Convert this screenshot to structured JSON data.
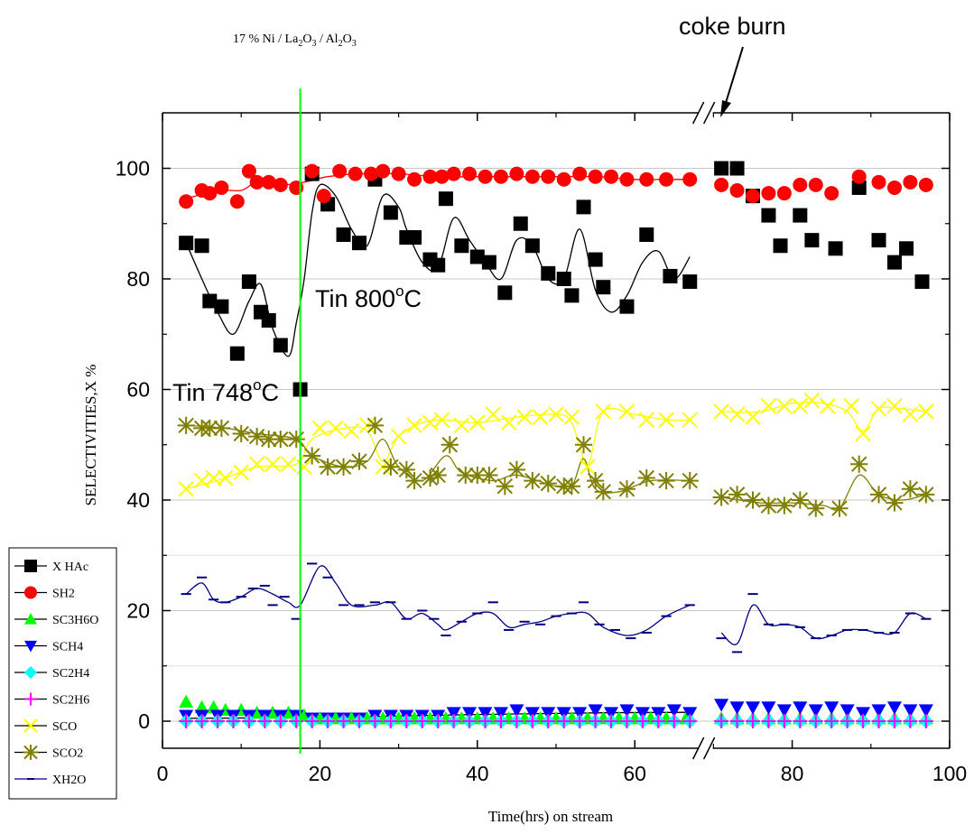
{
  "chart_data": {
    "type": "scatter",
    "xlabel": "Time(hrs) on stream",
    "ylabel": "SELECTIVITIES,X %",
    "xlim": [
      0,
      100
    ],
    "ylim": [
      -5,
      110
    ],
    "x_ticks": [
      "0",
      "20",
      "40",
      "60",
      "80",
      "100"
    ],
    "y_ticks": [
      "0",
      "20",
      "40",
      "60",
      "80",
      "100"
    ],
    "grid": true,
    "legend_position": "bottom-left",
    "axis_break_x": 69,
    "annotations": {
      "catalyst_prefix": "17 % Ni / La",
      "catalyst_sub1": "2",
      "catalyst_mid1": "O",
      "catalyst_sub2": "3",
      "catalyst_mid2": " / Al",
      "catalyst_sub3": "2",
      "catalyst_mid3": "O",
      "catalyst_sub4": "3",
      "coke_burn": "coke burn",
      "tin800_prefix": "Tin 800",
      "tin800_sup": "o",
      "tin800_suffix": "C",
      "tin748_prefix": "Tin 748",
      "tin748_sup": "o",
      "tin748_suffix": "C",
      "vline_x": 17.5
    },
    "series": [
      {
        "name": "X HAc",
        "marker": "square",
        "color": "#000000",
        "x": [
          3,
          5,
          6,
          7.5,
          9.5,
          11,
          12.5,
          13.5,
          15,
          17.5,
          19,
          21,
          23,
          25,
          27,
          29,
          31,
          32,
          34,
          35,
          36,
          38,
          40,
          41.5,
          43.5,
          45.5,
          47,
          49,
          51,
          52,
          53.5,
          55,
          56,
          59,
          61.5,
          64.5,
          67,
          71,
          73,
          75,
          77,
          78.5,
          81,
          82.5,
          85.5,
          88.5,
          91,
          93,
          94.5,
          96.5
        ],
        "y": [
          86.5,
          86,
          76,
          75,
          66.5,
          79.5,
          74,
          72.5,
          68,
          60,
          99,
          93.5,
          88,
          86.5,
          98,
          92,
          87.5,
          87.5,
          83.5,
          82.5,
          94.5,
          86,
          84,
          83,
          77.5,
          90,
          86,
          81,
          80,
          77,
          93,
          83.5,
          78.5,
          75,
          88,
          80.5,
          79.5,
          100,
          100,
          95,
          91.5,
          86,
          91.5,
          87,
          85.5,
          96.5,
          87,
          83,
          85.5,
          79.5
        ],
        "fit_x": [
          3,
          5,
          7,
          9,
          11,
          12.5,
          14,
          16,
          17,
          18,
          19,
          20,
          22,
          24,
          26,
          28,
          30,
          31,
          33,
          35,
          37,
          39,
          41,
          43,
          45,
          47,
          49,
          51,
          53,
          55,
          57,
          59,
          61,
          63,
          65,
          67
        ],
        "fit_y": [
          86.5,
          80,
          74,
          70,
          76,
          79,
          71,
          66,
          72,
          80,
          92,
          97,
          95,
          89,
          86,
          95,
          93,
          89,
          83,
          82,
          91,
          87,
          83,
          80,
          87,
          86,
          80,
          80,
          89,
          78,
          74,
          77,
          83,
          85,
          80,
          84
        ]
      },
      {
        "name": "SH2",
        "marker": "circle",
        "color": "#ff0000",
        "x": [
          3,
          5,
          6,
          7.5,
          9.5,
          11,
          12,
          13.5,
          15,
          17,
          19,
          20.5,
          22.5,
          24.5,
          26.5,
          28,
          30,
          32,
          34,
          35.5,
          37,
          39,
          41,
          43,
          45,
          47,
          49,
          51,
          53,
          55,
          57,
          59,
          61.5,
          64,
          67,
          71,
          73,
          75,
          77,
          79,
          81,
          83,
          85,
          88.5,
          91,
          93,
          95,
          97
        ],
        "y": [
          94,
          96,
          95.5,
          96.5,
          94,
          99.5,
          97.5,
          97.5,
          97,
          96.5,
          99.5,
          95,
          99.5,
          99,
          99,
          99.5,
          99,
          98,
          98.5,
          98.5,
          99,
          99,
          98.5,
          98.5,
          99,
          98.5,
          98.5,
          98,
          99,
          98.5,
          98.5,
          98,
          98,
          98,
          98,
          97,
          96,
          95,
          95.5,
          95.5,
          97,
          97,
          95.5,
          98.5,
          97.5,
          96.5,
          97.5,
          97
        ],
        "fit_x": [
          3,
          7,
          10,
          12,
          15,
          18,
          21,
          25,
          30,
          35,
          40,
          45,
          50,
          55,
          60,
          64,
          67
        ],
        "fit_y": [
          94.5,
          96,
          96,
          97.5,
          97,
          97.5,
          98.5,
          99,
          99,
          98.5,
          98.5,
          98.5,
          98.5,
          98.5,
          98,
          98,
          98
        ]
      },
      {
        "name": "SC3H6O",
        "marker": "triangle-up",
        "color": "#00ff00",
        "x": [
          3,
          5,
          6.5,
          8,
          10,
          12,
          14,
          16,
          18,
          20,
          22,
          24,
          26,
          28,
          30,
          32,
          34,
          36,
          38,
          40,
          42,
          44,
          46,
          48,
          50,
          52,
          54,
          56,
          58,
          60,
          62,
          64,
          66.5,
          71,
          73,
          75,
          77,
          79,
          81,
          83,
          85,
          87,
          89,
          91,
          93,
          95,
          97
        ],
        "y": [
          3.5,
          2.5,
          2.5,
          2,
          2,
          1.5,
          1.5,
          1.5,
          1,
          0.5,
          0.5,
          0.5,
          0.5,
          0.5,
          0.5,
          0.5,
          0.5,
          0.5,
          0.5,
          0.5,
          0.5,
          0.5,
          0.5,
          0.5,
          0.5,
          0.5,
          0.5,
          0.5,
          0.5,
          0.5,
          0.5,
          0.5,
          0.5,
          0.5,
          0.5,
          0.5,
          0.5,
          0.5,
          0.5,
          0.5,
          0.5,
          0.5,
          0.5,
          0.5,
          0.5,
          0.5,
          0.5
        ]
      },
      {
        "name": "SCH4",
        "marker": "triangle-down",
        "color": "#0000ff",
        "x": [
          3,
          5,
          7,
          9,
          11,
          13,
          15,
          17,
          19,
          21,
          23,
          25,
          27,
          29,
          31,
          33,
          35,
          37,
          39,
          41,
          43,
          45,
          47,
          49,
          51,
          53,
          55,
          57,
          59,
          61,
          63,
          65,
          67,
          71,
          73,
          75,
          77,
          79,
          81,
          83,
          85,
          87,
          89,
          91,
          93,
          95,
          97
        ],
        "y": [
          1,
          1,
          1,
          1,
          1,
          1,
          1,
          1,
          0.5,
          0.5,
          0.5,
          0.5,
          1,
          1,
          1,
          1,
          1,
          1.5,
          1.5,
          1.5,
          1.5,
          2,
          1.5,
          1.5,
          1.5,
          1.5,
          2,
          1.5,
          2,
          1.5,
          1.5,
          2,
          1.5,
          3,
          2.5,
          2.5,
          2.5,
          2,
          2.5,
          2,
          2.5,
          2,
          1.5,
          2,
          2.5,
          2,
          2
        ],
        "fit_x": [
          3,
          20,
          40,
          55,
          67
        ],
        "fit_y": [
          0.5,
          0.7,
          1.2,
          1.5,
          1.6
        ]
      },
      {
        "name": "SC2H4",
        "marker": "diamond",
        "color": "#00ffff",
        "x": [
          3,
          5,
          7,
          9,
          11,
          13,
          15,
          17,
          19,
          21,
          23,
          25,
          27,
          29,
          31,
          33,
          35,
          37,
          39,
          41,
          43,
          45,
          47,
          49,
          51,
          53,
          55,
          57,
          59,
          61,
          63,
          65,
          67,
          71,
          73,
          75,
          77,
          79,
          81,
          83,
          85,
          87,
          89,
          91,
          93,
          95,
          97
        ],
        "y": [
          0,
          0,
          0,
          0,
          0,
          0,
          0,
          0,
          0,
          0,
          0,
          0,
          0,
          0,
          0,
          0,
          0,
          0,
          0,
          0,
          0,
          0,
          0,
          0,
          0,
          0,
          0,
          0,
          0,
          0,
          0,
          0,
          0,
          0,
          0,
          0,
          0,
          0,
          0,
          0,
          0,
          0,
          0,
          0,
          0,
          0,
          0
        ]
      },
      {
        "name": "SC2H6",
        "marker": "plus",
        "color": "#ff00ff",
        "x": [
          3,
          5,
          7,
          9,
          11,
          13,
          15,
          17,
          19,
          21,
          23,
          25,
          27,
          29,
          31,
          33,
          35,
          37,
          39,
          41,
          43,
          45,
          47,
          49,
          51,
          53,
          55,
          57,
          59,
          61,
          63,
          65,
          67,
          71,
          73,
          75,
          77,
          79,
          81,
          83,
          85,
          87,
          89,
          91,
          93,
          95,
          97
        ],
        "y": [
          0,
          0,
          0,
          0,
          0,
          0,
          0,
          0,
          0,
          0,
          0,
          0,
          0,
          0,
          0,
          0,
          0,
          0,
          0,
          0,
          0,
          0,
          0,
          0,
          0,
          0,
          0,
          0,
          0,
          0,
          0,
          0,
          0,
          0,
          0,
          0,
          0,
          0,
          0,
          0,
          0,
          0,
          0,
          0,
          0,
          0,
          0
        ]
      },
      {
        "name": "SCO",
        "marker": "x",
        "color": "#ffff00",
        "x": [
          3,
          5,
          6.5,
          8,
          10,
          12,
          14,
          16,
          18,
          20,
          22,
          24,
          26,
          28,
          30,
          32,
          34,
          35.5,
          38,
          40,
          42,
          44,
          46,
          48,
          50,
          52,
          54,
          56,
          59,
          61.5,
          64,
          67,
          71,
          73,
          75,
          77,
          79,
          81,
          82.5,
          84.5,
          87.5,
          89,
          91,
          93,
          95,
          97
        ],
        "y": [
          42,
          43.5,
          44,
          44,
          45,
          46.5,
          46.5,
          46.5,
          46,
          53,
          53,
          52.5,
          53.5,
          46,
          51.5,
          53.5,
          54,
          54.5,
          53.5,
          54,
          55.5,
          54,
          55,
          55,
          55.5,
          55,
          46,
          56,
          56,
          54.5,
          54.5,
          54.5,
          56,
          55.5,
          55,
          57,
          57,
          57,
          58,
          57,
          57,
          52,
          56.5,
          57,
          55.5,
          56
        ],
        "fit_x": [
          3,
          8,
          12,
          17,
          19,
          23,
          26,
          28,
          30,
          33,
          36,
          40,
          45,
          50,
          52,
          54,
          56,
          60,
          64,
          67,
          71,
          76,
          80,
          84,
          87,
          89,
          91,
          94,
          97
        ],
        "fit_y": [
          42,
          44,
          46,
          46.5,
          51,
          53,
          52.5,
          47,
          51.5,
          54,
          54.5,
          54,
          55,
          55.5,
          54,
          46.5,
          56,
          55.5,
          54.5,
          54.5,
          56,
          56,
          57.5,
          57.5,
          56,
          52.5,
          56.5,
          56.5,
          56
        ]
      },
      {
        "name": "SCO2",
        "marker": "asterisk",
        "color": "#808000",
        "x": [
          3,
          5,
          6,
          7.5,
          10,
          12,
          13.5,
          15,
          17,
          19,
          21,
          23,
          25,
          27,
          29,
          31,
          32,
          34,
          35,
          36.5,
          38.5,
          40,
          41.5,
          43.5,
          45,
          47,
          49,
          51,
          52,
          53.5,
          55,
          56,
          59,
          61.5,
          64,
          67,
          71,
          73,
          75,
          77,
          79,
          81,
          83,
          86,
          88.5,
          91,
          93,
          95,
          97
        ],
        "y": [
          53.5,
          53,
          53,
          53,
          52,
          51.5,
          51,
          51,
          51,
          48,
          46,
          46,
          47,
          53.5,
          46,
          45.5,
          43.5,
          44,
          44.5,
          50,
          44.5,
          44.5,
          44.5,
          42.5,
          45.5,
          43.5,
          43,
          42.5,
          42.5,
          50,
          43.5,
          41.5,
          42,
          44,
          43.5,
          43.5,
          40.5,
          41,
          40,
          39,
          39,
          40,
          38.5,
          38.5,
          46.5,
          41,
          39.5,
          42,
          41
        ],
        "fit_x": [
          3,
          8,
          12,
          17,
          19,
          23,
          26,
          28,
          30,
          33,
          36,
          38,
          42,
          45,
          50,
          52,
          53.5,
          55,
          58,
          62,
          67,
          71,
          76,
          80,
          84,
          86,
          88.5,
          91,
          94,
          97
        ],
        "fit_y": [
          53.5,
          53,
          52,
          51,
          48,
          46,
          47,
          51,
          46,
          43.5,
          48,
          45,
          43.5,
          44.5,
          42.5,
          42.5,
          47.5,
          42,
          41.5,
          43.5,
          43.5,
          40.5,
          39.5,
          39.5,
          39,
          38.5,
          44.5,
          41,
          40,
          41
        ]
      },
      {
        "name": "XH2O",
        "marker": "dash",
        "color": "#000080",
        "x": [
          3,
          5,
          6.5,
          8,
          10,
          11.5,
          13,
          14,
          15.5,
          17,
          19,
          21,
          23,
          25,
          27,
          29,
          31,
          33,
          34.5,
          36,
          38,
          40,
          42,
          44,
          46,
          48,
          50,
          52,
          53.5,
          55.5,
          57.5,
          59.5,
          61.5,
          64,
          67,
          71,
          73,
          75,
          77,
          79,
          81,
          83,
          85,
          87,
          89,
          91,
          93,
          95,
          97
        ],
        "y": [
          23,
          26,
          22,
          21.5,
          22.5,
          24,
          24.5,
          21,
          22.5,
          18.5,
          28.5,
          26,
          21,
          21,
          21.5,
          21.5,
          18.5,
          20,
          18.5,
          15.5,
          18,
          19.5,
          21.5,
          16.5,
          18,
          17.5,
          19,
          19.5,
          21.5,
          17.5,
          16.5,
          15,
          16,
          19,
          21,
          15,
          12.5,
          23,
          17.5,
          17.5,
          17,
          15,
          15.5,
          16.5,
          16.5,
          16,
          16,
          19.5,
          18.5
        ],
        "fit_x": [
          3,
          5,
          6.5,
          8,
          10,
          12,
          14,
          16,
          17.5,
          20,
          22,
          24,
          27,
          29,
          31,
          33,
          35,
          36,
          38,
          40,
          42,
          44,
          46,
          48,
          50,
          52,
          54,
          56,
          59,
          61.5,
          64,
          67,
          71,
          73,
          75,
          77,
          79,
          81,
          83,
          85,
          87,
          89,
          91,
          93,
          95,
          97
        ],
        "fit_y": [
          23,
          25,
          22,
          21.5,
          22.5,
          24,
          23,
          21.5,
          21,
          28,
          25,
          21,
          21,
          21.5,
          18.5,
          19.5,
          17.5,
          16.5,
          18,
          19.5,
          19.5,
          17,
          17.5,
          18,
          19,
          19.5,
          19.5,
          17,
          15.5,
          16.5,
          19,
          21,
          16,
          14,
          21,
          17.5,
          17.5,
          17,
          15,
          15.5,
          16.5,
          16.5,
          16,
          16,
          19.5,
          18.5
        ]
      }
    ]
  }
}
